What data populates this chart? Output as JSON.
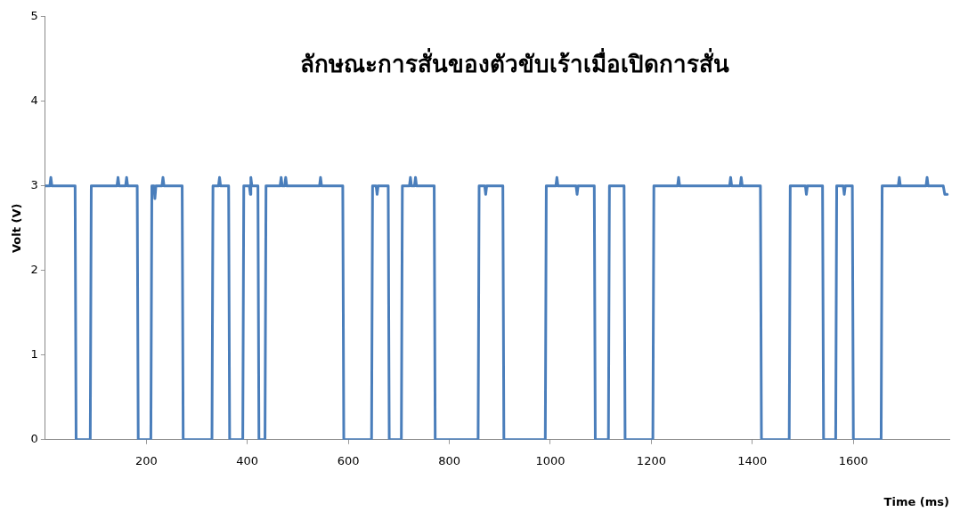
{
  "chart_data": {
    "type": "line",
    "title": "ลักษณะการสั่นของตัวขับเร้าเมื่อเปิดการสั่น",
    "xlabel": "Time (ms)",
    "ylabel": "Volt (V)",
    "x": [
      0,
      9,
      11,
      13,
      59,
      61,
      89,
      91,
      142,
      144,
      146,
      159,
      161,
      163,
      182,
      184,
      209,
      211,
      215,
      217,
      219,
      231,
      233,
      235,
      271,
      273,
      330,
      332,
      343,
      345,
      347,
      363,
      365,
      391,
      393,
      404,
      406,
      407,
      409,
      421,
      423,
      435,
      437,
      465,
      467,
      469,
      474,
      476,
      478,
      543,
      545,
      547,
      589,
      591,
      646,
      648,
      655,
      657,
      659,
      679,
      681,
      705,
      707,
      721,
      723,
      725,
      731,
      733,
      735,
      770,
      772,
      857,
      859,
      870,
      872,
      874,
      906,
      908,
      990,
      992,
      1011,
      1013,
      1015,
      1051,
      1053,
      1055,
      1087,
      1089,
      1115,
      1117,
      1146,
      1148,
      1203,
      1205,
      1252,
      1254,
      1256,
      1355,
      1357,
      1359,
      1376,
      1378,
      1380,
      1416,
      1418,
      1473,
      1475,
      1505,
      1507,
      1509,
      1539,
      1541,
      1565,
      1567,
      1580,
      1582,
      1584,
      1598,
      1600,
      1655,
      1657,
      1689,
      1691,
      1693,
      1744,
      1746,
      1748,
      1778,
      1781,
      1786
    ],
    "series": [
      {
        "color": "#4a7ebb",
        "values": [
          3,
          3,
          3.1,
          3,
          3,
          0,
          0,
          3,
          3,
          3.1,
          3,
          3,
          3.1,
          3,
          3,
          0,
          0,
          3,
          3,
          2.85,
          3,
          3,
          3.1,
          3,
          3,
          0,
          0,
          3,
          3,
          3.1,
          3,
          3,
          0,
          0,
          3,
          3,
          2.9,
          3.1,
          3,
          3,
          0,
          0,
          3,
          3,
          3.1,
          3,
          3,
          3.1,
          3,
          3,
          3.1,
          3,
          3,
          0,
          0,
          3,
          3,
          2.9,
          3,
          3,
          0,
          0,
          3,
          3,
          3.1,
          3,
          3,
          3.1,
          3,
          3,
          0,
          0,
          3,
          3,
          2.9,
          3,
          3,
          0,
          0,
          3,
          3,
          3.1,
          3,
          3,
          2.9,
          3,
          3,
          0,
          0,
          3,
          3,
          0,
          0,
          3,
          3,
          3.1,
          3,
          3,
          3.1,
          3,
          3,
          3.1,
          3,
          3,
          0,
          0,
          3,
          3,
          2.9,
          3,
          3,
          0,
          0,
          3,
          3,
          2.9,
          3,
          3,
          0,
          0,
          3,
          3,
          3.1,
          3,
          3,
          3.1,
          3,
          3,
          2.9,
          2.9
        ]
      }
    ],
    "xlim": [
      0,
      1790
    ],
    "xticks": [
      200,
      400,
      600,
      800,
      1000,
      1200,
      1400,
      1600
    ],
    "ylim": [
      0,
      5
    ],
    "yticks": [
      0,
      1,
      2,
      3,
      4,
      5
    ],
    "grid": false,
    "legend": false,
    "marker": "none",
    "line_style": "solid"
  }
}
